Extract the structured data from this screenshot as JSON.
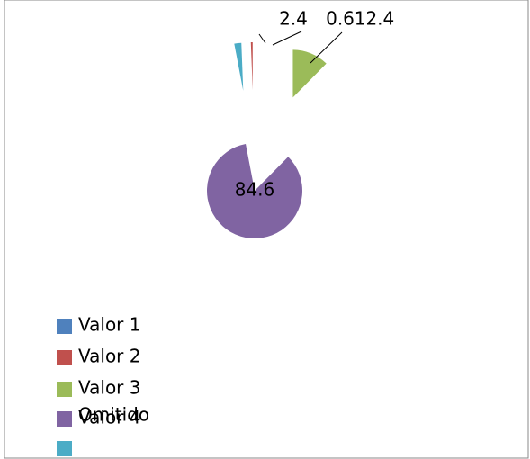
{
  "chart_data": {
    "type": "pie",
    "categories": [
      "Valor 1",
      "Valor 2",
      "Valor 3",
      "Valor 4",
      "Omitido"
    ],
    "values": [
      null,
      0.6,
      12.4,
      84.6,
      2.4
    ],
    "colors": [
      "#4f81bd",
      "#c0504d",
      "#9bbb59",
      "#8064a2",
      "#4bacc6"
    ],
    "legend": "bottom-left"
  }
}
